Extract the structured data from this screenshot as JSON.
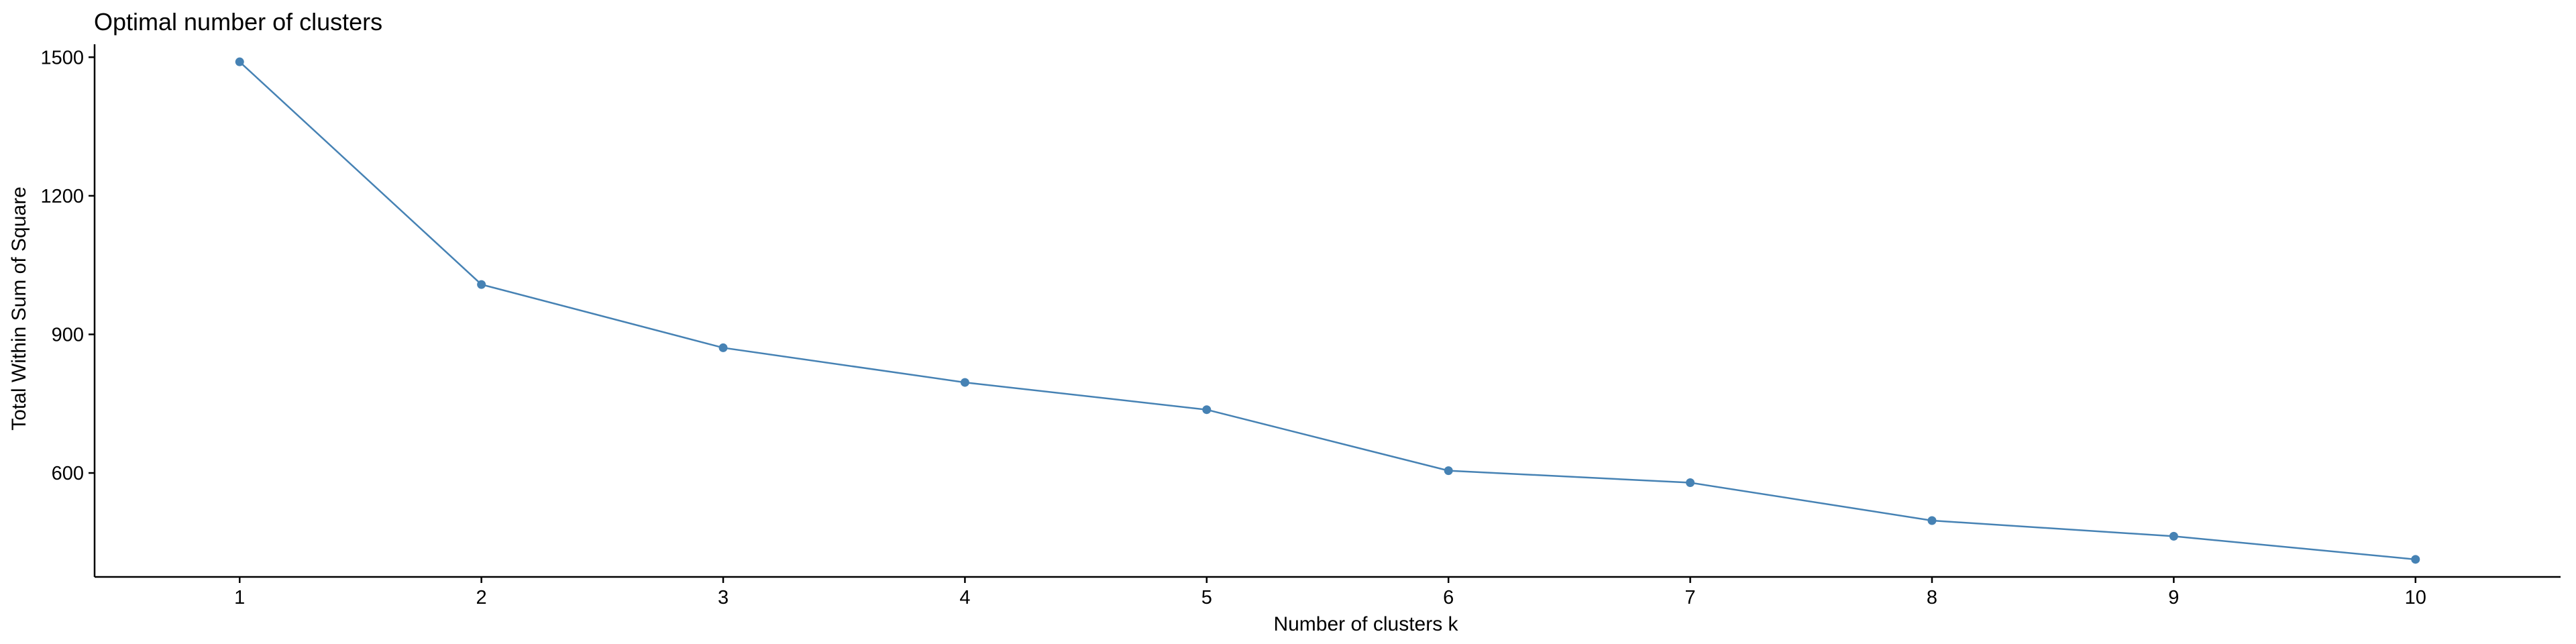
{
  "chart_data": {
    "type": "line",
    "title": "Optimal number of clusters",
    "xlabel": "Number of clusters k",
    "ylabel": "Total Within Sum of Square",
    "x": [
      1,
      2,
      3,
      4,
      5,
      6,
      7,
      8,
      9,
      10
    ],
    "series": [
      {
        "values": [
          1490,
          1008,
          871,
          796,
          737,
          605,
          579,
          497,
          463,
          413
        ]
      }
    ],
    "xticks": [
      "1",
      "2",
      "3",
      "4",
      "5",
      "6",
      "7",
      "8",
      "9",
      "10"
    ],
    "yticks": [
      600,
      900,
      1200,
      1500
    ],
    "xlim": [
      0.4,
      10.6
    ],
    "ylim": [
      375,
      1528
    ],
    "grid": false,
    "legend": "none",
    "colors": {
      "series": "#4682B4",
      "axis": "#000000",
      "background": "#FFFFFF"
    }
  }
}
